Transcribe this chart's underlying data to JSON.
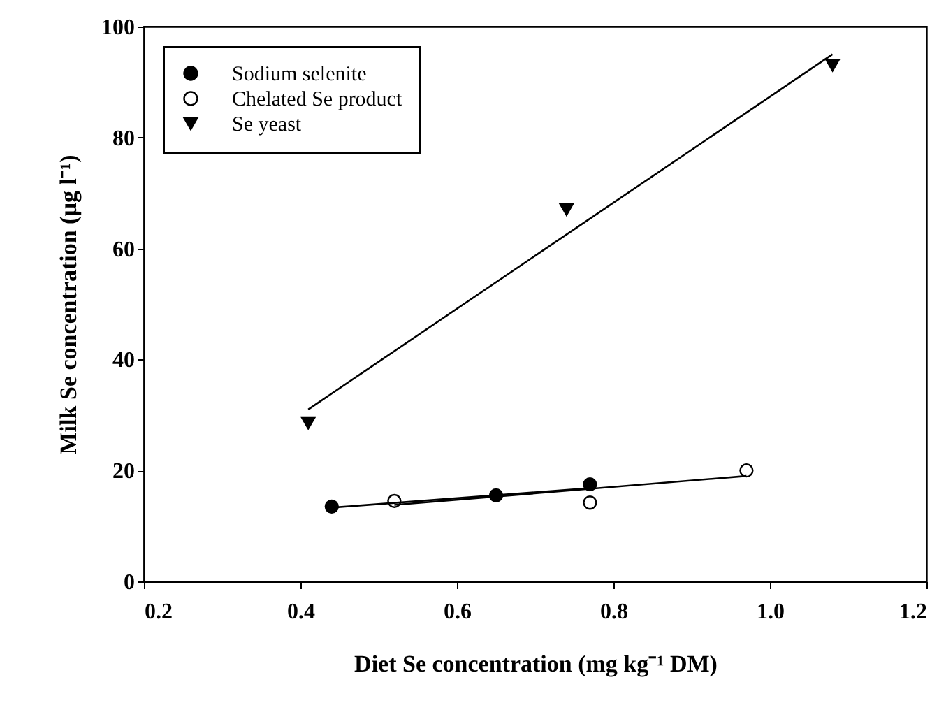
{
  "chart_data": {
    "type": "scatter",
    "xlabel": "Diet Se concentration (mg kg⁻¹ DM)",
    "ylabel": "Milk Se concentration (µg l⁻¹)",
    "xlim": [
      0.2,
      1.2
    ],
    "xticks": [
      {
        "value": 0.2,
        "label": "0.2"
      },
      {
        "value": 0.4,
        "label": "0.4"
      },
      {
        "value": 0.6,
        "label": "0.6"
      },
      {
        "value": 0.8,
        "label": "0.8"
      },
      {
        "value": 1.0,
        "label": "1.0"
      },
      {
        "value": 1.2,
        "label": "1.2"
      }
    ],
    "ylim": [
      0,
      100
    ],
    "yticks": [
      0,
      20,
      40,
      60,
      80,
      100
    ],
    "grid": false,
    "legend": "top left",
    "series": [
      {
        "name": "Sodium selenite",
        "marker": "circle",
        "color": "#000000",
        "x": [
          0.44,
          0.65,
          0.77
        ],
        "values": [
          13.5,
          15.5,
          17.5
        ]
      },
      {
        "name": "Chelated Se product",
        "marker": "circle",
        "color": "#ffffff",
        "x": [
          0.52,
          0.77,
          0.97
        ],
        "values": [
          14.5,
          14.2,
          20
        ]
      },
      {
        "name": "Se yeast",
        "marker": "triangle",
        "color": "#000000",
        "x": [
          0.41,
          0.74,
          1.08
        ],
        "values": [
          28.5,
          67,
          93
        ]
      },
      {
        "type": "line",
        "marker": "none",
        "color": "#000000",
        "x": [
          0.44,
          0.77
        ],
        "values": [
          13.3,
          16.8
        ]
      },
      {
        "type": "line",
        "marker": "none",
        "color": "#000000",
        "x": [
          0.52,
          0.97
        ],
        "values": [
          13.8,
          19
        ]
      },
      {
        "type": "line",
        "marker": "none",
        "color": "#000000",
        "x": [
          0.41,
          1.08
        ],
        "values": [
          31,
          95
        ]
      }
    ]
  }
}
